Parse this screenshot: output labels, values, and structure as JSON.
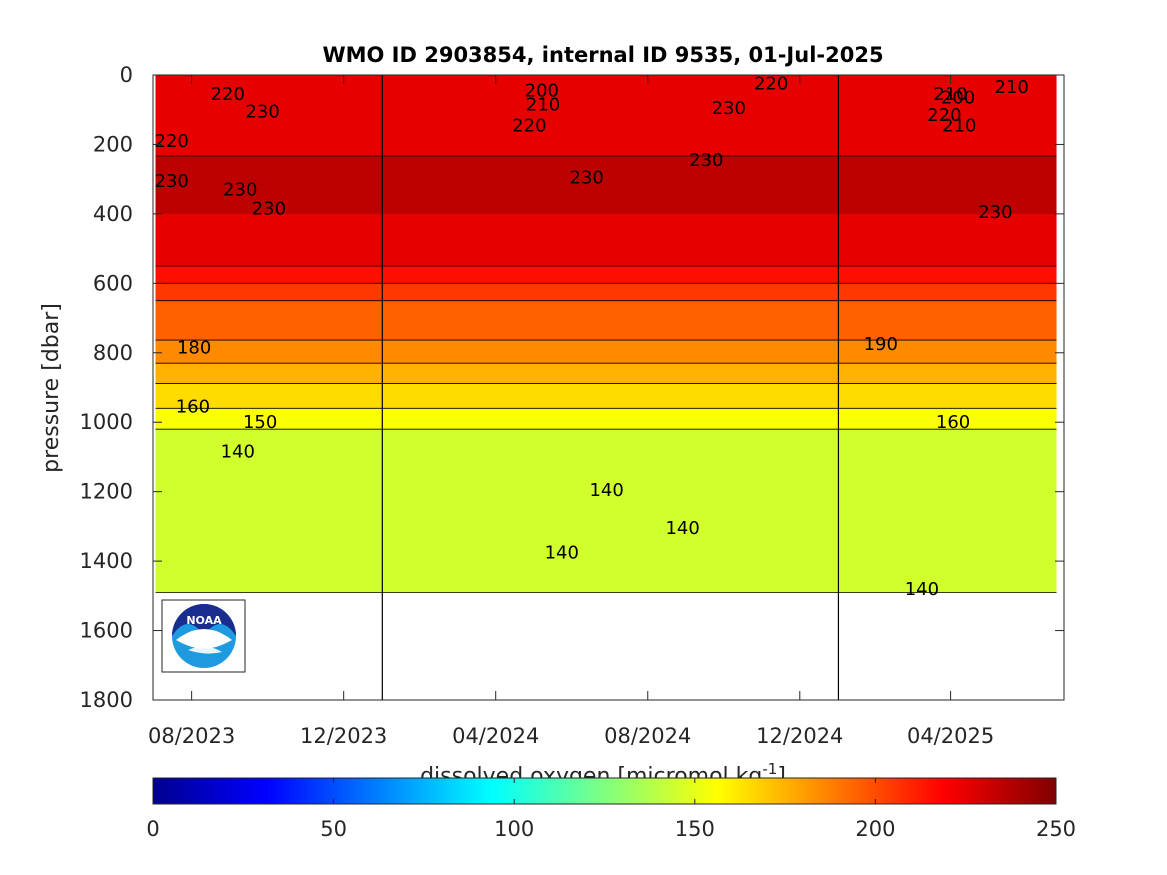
{
  "chart_data": {
    "type": "heatmap",
    "title": "WMO ID 2903854, internal ID 9535, 01-Jul-2025",
    "xlabel": "",
    "ylabel": "pressure [dbar]",
    "y_reversed": true,
    "ylim": [
      0,
      1800
    ],
    "y_ticks": [
      0,
      200,
      400,
      600,
      800,
      1000,
      1200,
      1400,
      1600,
      1800
    ],
    "y_tick_labels": [
      "0",
      "200",
      "400",
      "600",
      "800",
      "1000",
      "1200",
      "1400",
      "1600",
      "1800"
    ],
    "xlim": [
      "2023-07-01",
      "2025-07-01"
    ],
    "x_ticks": [
      "2023-08-01",
      "2023-12-01",
      "2024-04-01",
      "2024-08-01",
      "2024-12-01",
      "2025-04-01"
    ],
    "x_tick_labels": [
      "08/2023",
      "12/2023",
      "04/2024",
      "08/2024",
      "12/2024",
      "04/2025"
    ],
    "vertical_lines": [
      "2024-01-01",
      "2025-01-01"
    ],
    "data_extent": {
      "x_start": "2023-07-03",
      "x_end": "2025-06-25",
      "max_pressure": 1490
    },
    "colorbar": {
      "label": "dissolved oxygen [micromol kg",
      "label_superscript": "-1",
      "label_suffix": "]",
      "range": [
        0,
        250
      ],
      "ticks": [
        0,
        50,
        100,
        150,
        200,
        250
      ],
      "tick_labels": [
        "0",
        "50",
        "100",
        "150",
        "200",
        "250"
      ],
      "colormap": "jet"
    },
    "contour_levels": [
      140,
      150,
      160,
      170,
      180,
      190,
      200,
      210,
      220,
      230
    ],
    "depth_profile": [
      {
        "pressure": 0,
        "oxygen": 222
      },
      {
        "pressure": 100,
        "oxygen": 226
      },
      {
        "pressure": 300,
        "oxygen": 232
      },
      {
        "pressure": 450,
        "oxygen": 229
      },
      {
        "pressure": 550,
        "oxygen": 220
      },
      {
        "pressure": 600,
        "oxygen": 210
      },
      {
        "pressure": 650,
        "oxygen": 200
      },
      {
        "pressure": 750,
        "oxygen": 192
      },
      {
        "pressure": 830,
        "oxygen": 180
      },
      {
        "pressure": 900,
        "oxygen": 168
      },
      {
        "pressure": 960,
        "oxygen": 160
      },
      {
        "pressure": 1020,
        "oxygen": 150
      },
      {
        "pressure": 1200,
        "oxygen": 145
      },
      {
        "pressure": 1400,
        "oxygen": 142
      },
      {
        "pressure": 1490,
        "oxygen": 140
      }
    ],
    "labels": [
      {
        "text": "220",
        "x": "2023-08-30",
        "y": 55
      },
      {
        "text": "230",
        "x": "2023-09-27",
        "y": 105
      },
      {
        "text": "220",
        "x": "2023-07-16",
        "y": 190
      },
      {
        "text": "230",
        "x": "2023-07-16",
        "y": 305
      },
      {
        "text": "230",
        "x": "2023-09-09",
        "y": 330
      },
      {
        "text": "230",
        "x": "2023-10-02",
        "y": 385
      },
      {
        "text": "180",
        "x": "2023-08-03",
        "y": 785
      },
      {
        "text": "160",
        "x": "2023-08-02",
        "y": 955
      },
      {
        "text": "150",
        "x": "2023-09-25",
        "y": 1000
      },
      {
        "text": "140",
        "x": "2023-09-07",
        "y": 1085
      },
      {
        "text": "200",
        "x": "2024-05-08",
        "y": 45
      },
      {
        "text": "210",
        "x": "2024-05-09",
        "y": 85
      },
      {
        "text": "220",
        "x": "2024-04-28",
        "y": 145
      },
      {
        "text": "230",
        "x": "2024-06-13",
        "y": 295
      },
      {
        "text": "230",
        "x": "2024-09-17",
        "y": 245
      },
      {
        "text": "230",
        "x": "2024-10-05",
        "y": 95
      },
      {
        "text": "220",
        "x": "2024-11-08",
        "y": 25
      },
      {
        "text": "190",
        "x": "2025-02-04",
        "y": 775
      },
      {
        "text": "140",
        "x": "2024-06-29",
        "y": 1195
      },
      {
        "text": "140",
        "x": "2024-08-29",
        "y": 1305
      },
      {
        "text": "140",
        "x": "2024-05-24",
        "y": 1375
      },
      {
        "text": "210",
        "x": "2025-04-01",
        "y": 55
      },
      {
        "text": "200",
        "x": "2025-04-07",
        "y": 65
      },
      {
        "text": "210",
        "x": "2025-05-20",
        "y": 35
      },
      {
        "text": "220",
        "x": "2025-03-27",
        "y": 115
      },
      {
        "text": "210",
        "x": "2025-04-08",
        "y": 145
      },
      {
        "text": "230",
        "x": "2025-05-07",
        "y": 395
      },
      {
        "text": "160",
        "x": "2025-04-03",
        "y": 1000
      },
      {
        "text": "140",
        "x": "2025-03-09",
        "y": 1480
      }
    ]
  },
  "logo": {
    "text": "NOAA"
  }
}
